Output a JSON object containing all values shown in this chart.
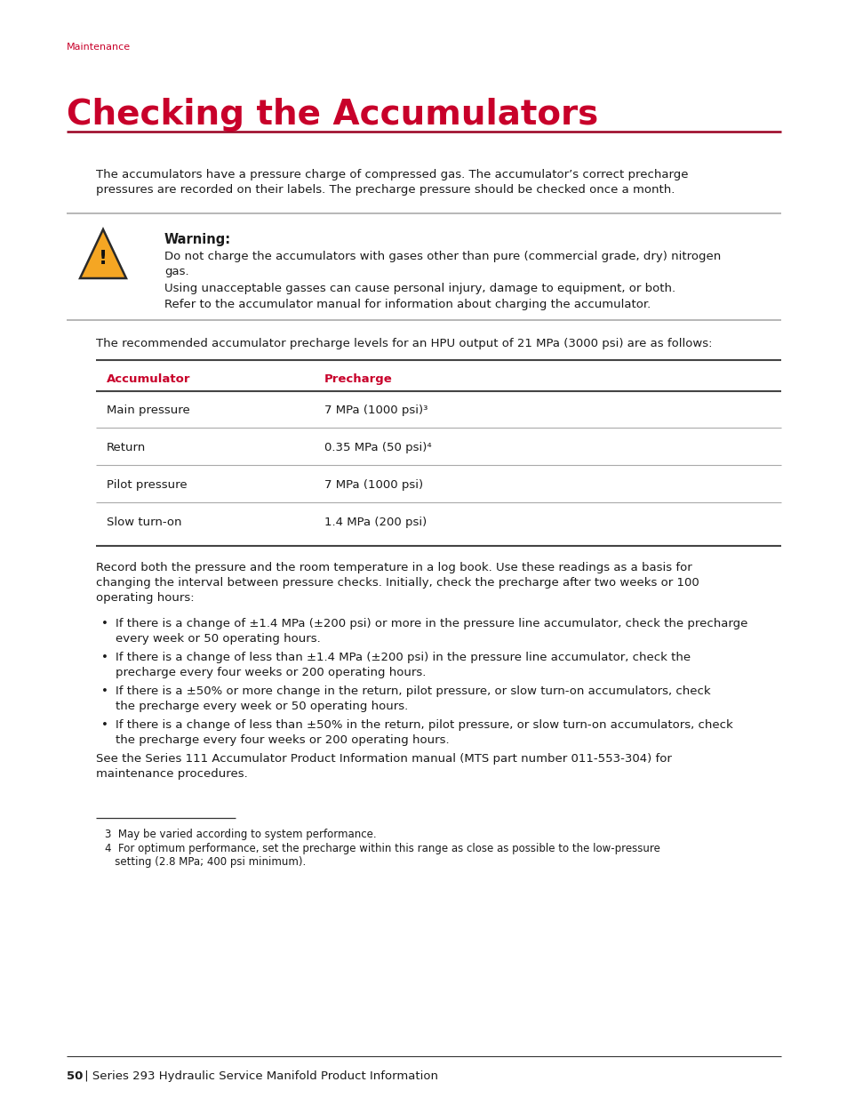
{
  "page_bg": "#ffffff",
  "section_label": "Maintenance",
  "section_label_color": "#c8002a",
  "section_label_size": 8,
  "title": "Checking the Accumulators",
  "title_color": "#c8002a",
  "title_size": 28,
  "title_underline_color": "#990020",
  "intro_text": "The accumulators have a pressure charge of compressed gas. The accumulator’s correct precharge\npressures are recorded on their labels. The precharge pressure should be checked once a month.",
  "warning_title": "Warning:",
  "warning_line1": "Do not charge the accumulators with gases other than pure (commercial grade, dry) nitrogen\ngas.",
  "warning_line2": "Using unacceptable gasses can cause personal injury, damage to equipment, or both.",
  "warning_line3": "Refer to the accumulator manual for information about charging the accumulator.",
  "table_intro": "The recommended accumulator precharge levels for an HPU output of 21 MPa (3000 psi) are as follows:",
  "table_col1_header": "Accumulator",
  "table_col2_header": "Precharge",
  "table_header_color": "#c8002a",
  "table_rows": [
    [
      "Main pressure",
      "7 MPa (1000 psi)³"
    ],
    [
      "Return",
      "0.35 MPa (50 psi)⁴"
    ],
    [
      "Pilot pressure",
      "7 MPa (1000 psi)"
    ],
    [
      "Slow turn-on",
      "1.4 MPa (200 psi)"
    ]
  ],
  "post_table_text": "Record both the pressure and the room temperature in a log book. Use these readings as a basis for\nchanging the interval between pressure checks. Initially, check the precharge after two weeks or 100\noperating hours:",
  "bullet_points": [
    "If there is a change of ±1.4 MPa (±200 psi) or more in the pressure line accumulator, check the precharge\nevery week or 50 operating hours.",
    "If there is a change of less than ±1.4 MPa (±200 psi) in the pressure line accumulator, check the\nprecharge every four weeks or 200 operating hours.",
    "If there is a ±50% or more change in the return, pilot pressure, or slow turn-on accumulators, check\nthe precharge every week or 50 operating hours.",
    "If there is a change of less than ±50% in the return, pilot pressure, or slow turn-on accumulators, check\nthe precharge every four weeks or 200 operating hours."
  ],
  "see_also_text": "See the Series 111 Accumulator Product Information manual (MTS part number 011-553-304) for\nmaintenance procedures.",
  "footnote3": "3  May be varied according to system performance.",
  "footnote4": "4  For optimum performance, set the precharge within this range as close as possible to the low-pressure",
  "footnote4b": "   setting (2.8 MPa; 400 psi minimum).",
  "footer_bold": "50",
  "footer_normal": " | Series 293 Hydraulic Service Manifold Product Information",
  "body_font_size": 9.5,
  "small_font_size": 8.5,
  "gray_line": "#aaaaaa",
  "dark_line": "#444444"
}
